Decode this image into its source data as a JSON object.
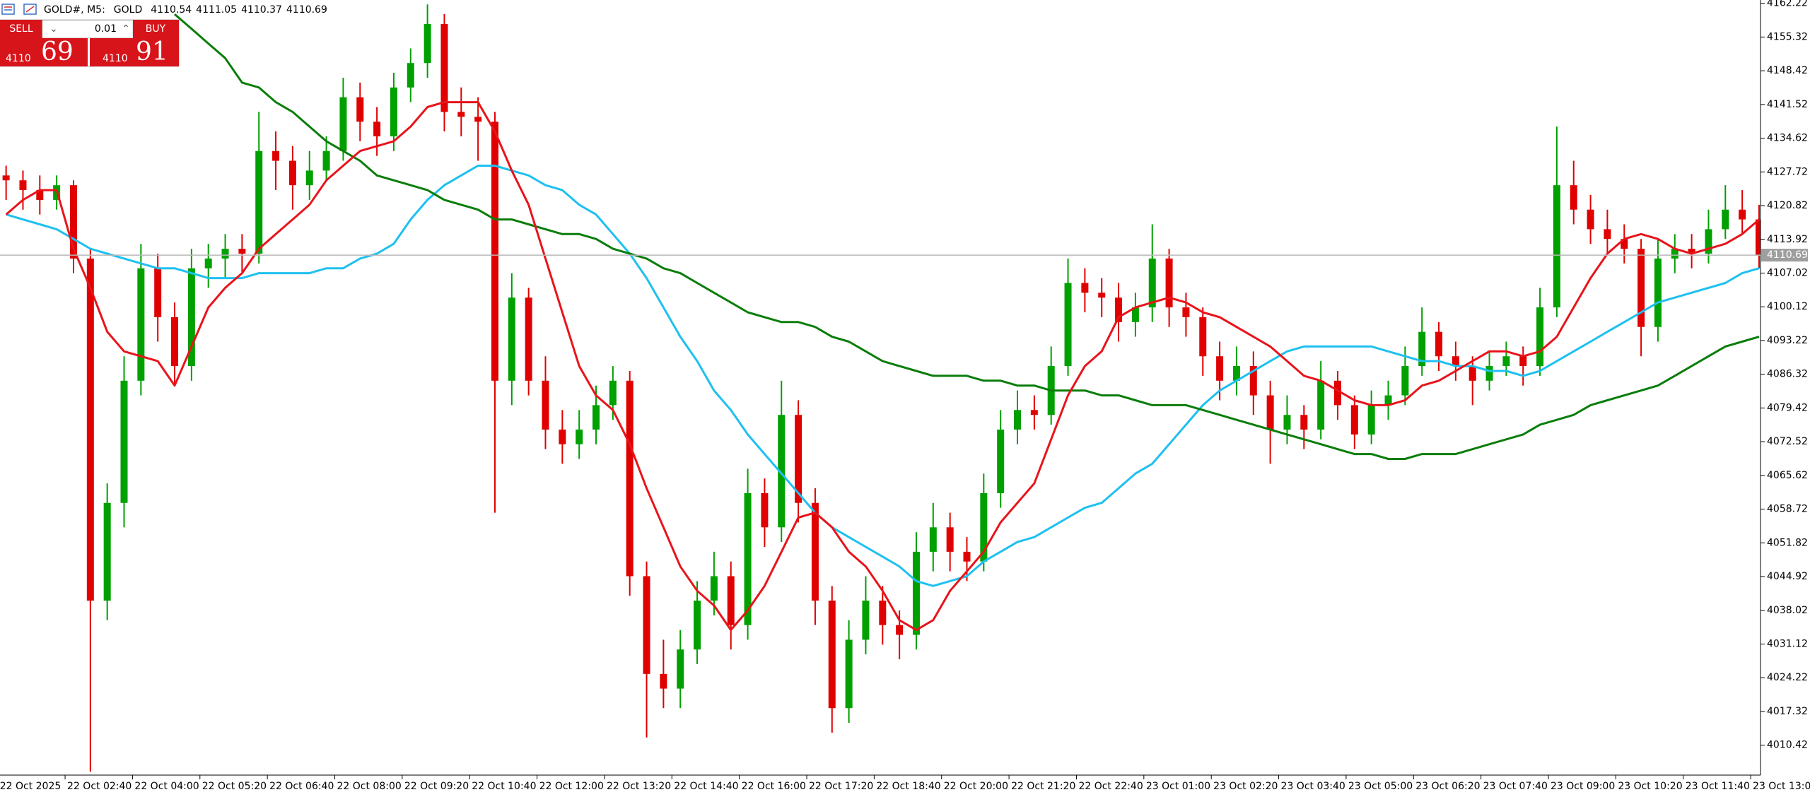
{
  "header": {
    "symbol": "GOLD#, M5:",
    "name": "GOLD",
    "ohlc": [
      4110.54,
      4111.05,
      4110.37,
      4110.69
    ]
  },
  "trade_panel": {
    "sell": "SELL",
    "buy": "BUY",
    "volume": "0.01",
    "sell_price": {
      "small": "4110",
      "big": "69"
    },
    "buy_price": {
      "small": "4110",
      "big": "91"
    }
  },
  "chart_data": {
    "type": "candlestick",
    "ylim": [
      4004.3,
      4162.9
    ],
    "yticks": [
      4010.42,
      4017.32,
      4024.22,
      4031.12,
      4038.02,
      4044.92,
      4051.82,
      4058.72,
      4065.62,
      4072.52,
      4079.42,
      4086.32,
      4093.22,
      4100.12,
      4107.02,
      4113.92,
      4120.82,
      4127.72,
      4134.62,
      4141.52,
      4148.42,
      4155.32,
      4162.22
    ],
    "current_price": 4110.69,
    "grid": false,
    "up_color": "#00a000",
    "down_color": "#e00000",
    "xticks": [
      {
        "value": 0,
        "label": "22 Oct 2025"
      },
      {
        "value": 4,
        "label": "22 Oct 02:40"
      },
      {
        "value": 8,
        "label": "22 Oct 04:00"
      },
      {
        "value": 12,
        "label": "22 Oct 05:20"
      },
      {
        "value": 16,
        "label": "22 Oct 06:40"
      },
      {
        "value": 20,
        "label": "22 Oct 08:00"
      },
      {
        "value": 24,
        "label": "22 Oct 09:20"
      },
      {
        "value": 28,
        "label": "22 Oct 10:40"
      },
      {
        "value": 32,
        "label": "22 Oct 12:00"
      },
      {
        "value": 36,
        "label": "22 Oct 13:20"
      },
      {
        "value": 40,
        "label": "22 Oct 14:40"
      },
      {
        "value": 44,
        "label": "22 Oct 16:00"
      },
      {
        "value": 48,
        "label": "22 Oct 17:20"
      },
      {
        "value": 52,
        "label": "22 Oct 18:40"
      },
      {
        "value": 56,
        "label": "22 Oct 20:00"
      },
      {
        "value": 60,
        "label": "22 Oct 21:20"
      },
      {
        "value": 64,
        "label": "22 Oct 22:40"
      },
      {
        "value": 68,
        "label": "23 Oct 01:00"
      },
      {
        "value": 72,
        "label": "23 Oct 02:20"
      },
      {
        "value": 76,
        "label": "23 Oct 03:40"
      },
      {
        "value": 80,
        "label": "23 Oct 05:00"
      },
      {
        "value": 84,
        "label": "23 Oct 06:20"
      },
      {
        "value": 88,
        "label": "23 Oct 07:40"
      },
      {
        "value": 92,
        "label": "23 Oct 09:00"
      },
      {
        "value": 96,
        "label": "23 Oct 10:20"
      },
      {
        "value": 100,
        "label": "23 Oct 11:40"
      },
      {
        "value": 104,
        "label": "23 Oct 13:00"
      }
    ],
    "candles": [
      [
        4127,
        4129,
        4122,
        4126
      ],
      [
        4126,
        4128,
        4120,
        4124
      ],
      [
        4124,
        4127,
        4119,
        4122
      ],
      [
        4122,
        4127,
        4120,
        4125
      ],
      [
        4125,
        4126,
        4107,
        4110
      ],
      [
        4110,
        4112,
        4005,
        4040
      ],
      [
        4040,
        4064,
        4036,
        4060
      ],
      [
        4060,
        4090,
        4055,
        4085
      ],
      [
        4085,
        4113,
        4082,
        4108
      ],
      [
        4108,
        4111,
        4093,
        4098
      ],
      [
        4098,
        4101,
        4084,
        4088
      ],
      [
        4088,
        4112,
        4085,
        4108
      ],
      [
        4108,
        4113,
        4104,
        4110
      ],
      [
        4110,
        4115,
        4106,
        4112
      ],
      [
        4112,
        4115,
        4107,
        4111
      ],
      [
        4111,
        4140,
        4109,
        4132
      ],
      [
        4132,
        4136,
        4124,
        4130
      ],
      [
        4130,
        4133,
        4120,
        4125
      ],
      [
        4125,
        4132,
        4122,
        4128
      ],
      [
        4128,
        4135,
        4126,
        4132
      ],
      [
        4132,
        4147,
        4130,
        4143
      ],
      [
        4143,
        4146,
        4134,
        4138
      ],
      [
        4138,
        4141,
        4131,
        4135
      ],
      [
        4135,
        4148,
        4132,
        4145
      ],
      [
        4145,
        4153,
        4142,
        4150
      ],
      [
        4150,
        4162,
        4147,
        4158
      ],
      [
        4158,
        4160,
        4136,
        4140
      ],
      [
        4140,
        4145,
        4135,
        4139
      ],
      [
        4139,
        4143,
        4130,
        4138
      ],
      [
        4138,
        4140,
        4058,
        4085
      ],
      [
        4085,
        4107,
        4080,
        4102
      ],
      [
        4102,
        4104,
        4082,
        4085
      ],
      [
        4085,
        4090,
        4071,
        4075
      ],
      [
        4075,
        4079,
        4068,
        4072
      ],
      [
        4072,
        4079,
        4069,
        4075
      ],
      [
        4075,
        4084,
        4072,
        4080
      ],
      [
        4080,
        4088,
        4077,
        4085
      ],
      [
        4085,
        4087,
        4041,
        4045
      ],
      [
        4045,
        4048,
        4012,
        4025
      ],
      [
        4025,
        4032,
        4018,
        4022
      ],
      [
        4022,
        4034,
        4018,
        4030
      ],
      [
        4030,
        4044,
        4027,
        4040
      ],
      [
        4040,
        4050,
        4037,
        4045
      ],
      [
        4045,
        4048,
        4030,
        4035
      ],
      [
        4035,
        4067,
        4032,
        4062
      ],
      [
        4062,
        4065,
        4051,
        4055
      ],
      [
        4055,
        4085,
        4052,
        4078
      ],
      [
        4078,
        4081,
        4056,
        4060
      ],
      [
        4060,
        4063,
        4035,
        4040
      ],
      [
        4040,
        4043,
        4013,
        4018
      ],
      [
        4018,
        4036,
        4015,
        4032
      ],
      [
        4032,
        4045,
        4029,
        4040
      ],
      [
        4040,
        4043,
        4031,
        4035
      ],
      [
        4035,
        4038,
        4028,
        4033
      ],
      [
        4033,
        4054,
        4030,
        4050
      ],
      [
        4050,
        4060,
        4046,
        4055
      ],
      [
        4055,
        4058,
        4046,
        4050
      ],
      [
        4050,
        4053,
        4044,
        4048
      ],
      [
        4048,
        4066,
        4046,
        4062
      ],
      [
        4062,
        4079,
        4059,
        4075
      ],
      [
        4075,
        4083,
        4072,
        4079
      ],
      [
        4079,
        4082,
        4075,
        4078
      ],
      [
        4078,
        4092,
        4076,
        4088
      ],
      [
        4088,
        4110,
        4086,
        4105
      ],
      [
        4105,
        4108,
        4099,
        4103
      ],
      [
        4103,
        4106,
        4098,
        4102
      ],
      [
        4102,
        4105,
        4093,
        4097
      ],
      [
        4097,
        4103,
        4094,
        4100
      ],
      [
        4100,
        4117,
        4097,
        4110
      ],
      [
        4110,
        4112,
        4096,
        4100
      ],
      [
        4100,
        4103,
        4094,
        4098
      ],
      [
        4098,
        4100,
        4086,
        4090
      ],
      [
        4090,
        4093,
        4081,
        4085
      ],
      [
        4085,
        4092,
        4082,
        4088
      ],
      [
        4088,
        4091,
        4078,
        4082
      ],
      [
        4082,
        4085,
        4068,
        4075
      ],
      [
        4075,
        4082,
        4072,
        4078
      ],
      [
        4078,
        4080,
        4071,
        4075
      ],
      [
        4075,
        4089,
        4073,
        4085
      ],
      [
        4085,
        4087,
        4077,
        4080
      ],
      [
        4080,
        4082,
        4071,
        4074
      ],
      [
        4074,
        4083,
        4072,
        4080
      ],
      [
        4080,
        4085,
        4077,
        4082
      ],
      [
        4082,
        4092,
        4080,
        4088
      ],
      [
        4088,
        4100,
        4086,
        4095
      ],
      [
        4095,
        4097,
        4087,
        4090
      ],
      [
        4090,
        4093,
        4085,
        4088
      ],
      [
        4088,
        4090,
        4080,
        4085
      ],
      [
        4085,
        4091,
        4083,
        4088
      ],
      [
        4088,
        4093,
        4086,
        4090
      ],
      [
        4090,
        4092,
        4084,
        4088
      ],
      [
        4088,
        4104,
        4086,
        4100
      ],
      [
        4100,
        4137,
        4098,
        4125
      ],
      [
        4125,
        4130,
        4117,
        4120
      ],
      [
        4120,
        4123,
        4113,
        4116
      ],
      [
        4116,
        4120,
        4111,
        4114
      ],
      [
        4114,
        4117,
        4109,
        4112
      ],
      [
        4112,
        4114,
        4090,
        4096
      ],
      [
        4096,
        4114,
        4093,
        4110
      ],
      [
        4110,
        4115,
        4107,
        4112
      ],
      [
        4112,
        4115,
        4108,
        4111
      ],
      [
        4111,
        4120,
        4109,
        4116
      ],
      [
        4116,
        4125,
        4114,
        4120
      ],
      [
        4120,
        4124,
        4115,
        4118
      ],
      [
        4118,
        4121,
        4108,
        4110.69
      ]
    ],
    "series": [
      {
        "color": "#1ec0f0",
        "values": [
          4119,
          4118,
          4117,
          4116,
          4114,
          4112,
          4111,
          4110,
          4109,
          4108,
          4108,
          4107,
          4106,
          4106,
          4106,
          4107,
          4107,
          4107,
          4107,
          4108,
          4108,
          4110,
          4111,
          4113,
          4118,
          4122,
          4125,
          4127,
          4129,
          4129,
          4128,
          4127,
          4125,
          4124,
          4121,
          4119,
          4115,
          4111,
          4106,
          4100,
          4094,
          4089,
          4083,
          4079,
          4074,
          4070,
          4066,
          4062,
          4058,
          4055,
          4053,
          4051,
          4049,
          4047,
          4044,
          4043,
          4044,
          4045,
          4048,
          4050,
          4052,
          4053,
          4055,
          4057,
          4059,
          4060,
          4063,
          4066,
          4068,
          4072,
          4076,
          4080,
          4083,
          4085,
          4087,
          4089,
          4091,
          4092,
          4092,
          4092,
          4092,
          4092,
          4091,
          4090,
          4089,
          4089,
          4088,
          4088,
          4087,
          4087,
          4086,
          4087,
          4089,
          4091,
          4093,
          4095,
          4097,
          4099,
          4101,
          4102,
          4103,
          4104,
          4105,
          4107,
          4108
        ]
      },
      {
        "color": "#0a7d0a",
        "values": [
          null,
          null,
          null,
          null,
          null,
          null,
          null,
          null,
          null,
          null,
          4160,
          4157,
          4154,
          4151,
          4146,
          4145,
          4142,
          4140,
          4137,
          4134,
          4132,
          4130,
          4127,
          4126,
          4125,
          4124,
          4122,
          4121,
          4120,
          4118,
          4118,
          4117,
          4116,
          4115,
          4115,
          4114,
          4112,
          4111,
          4110,
          4108,
          4107,
          4105,
          4103,
          4101,
          4099,
          4098,
          4097,
          4097,
          4096,
          4094,
          4093,
          4091,
          4089,
          4088,
          4087,
          4086,
          4086,
          4086,
          4085,
          4085,
          4084,
          4084,
          4083,
          4083,
          4083,
          4082,
          4082,
          4081,
          4080,
          4080,
          4080,
          4079,
          4078,
          4077,
          4076,
          4075,
          4074,
          4073,
          4072,
          4071,
          4070,
          4070,
          4069,
          4069,
          4070,
          4070,
          4070,
          4071,
          4072,
          4073,
          4074,
          4076,
          4077,
          4078,
          4080,
          4081,
          4082,
          4083,
          4084,
          4086,
          4088,
          4090,
          4092,
          4093,
          4094
        ]
      },
      {
        "color": "#e8141b",
        "values": [
          4119,
          4122,
          4124,
          4124,
          4112,
          4104,
          4095,
          4091,
          4090,
          4089,
          4084,
          4092,
          4100,
          4104,
          4107,
          4112,
          4115,
          4118,
          4121,
          4126,
          4129,
          4132,
          4133,
          4134,
          4137,
          4141,
          4142,
          4142,
          4142,
          4136,
          4128,
          4121,
          4110,
          4099,
          4088,
          4082,
          4079,
          4072,
          4063,
          4055,
          4047,
          4042,
          4039,
          4034,
          4038,
          4043,
          4050,
          4057,
          4058,
          4055,
          4050,
          4047,
          4042,
          4036,
          4034,
          4036,
          4042,
          4046,
          4050,
          4056,
          4060,
          4064,
          4073,
          4082,
          4088,
          4091,
          4098,
          4100,
          4101,
          4102,
          4101,
          4099,
          4098,
          4096,
          4094,
          4092,
          4089,
          4086,
          4085,
          4083,
          4081,
          4080,
          4080,
          4081,
          4084,
          4085,
          4087,
          4089,
          4091,
          4091,
          4090,
          4091,
          4094,
          4100,
          4106,
          4111,
          4114,
          4115,
          4114,
          4112,
          4111,
          4112,
          4113,
          4115,
          4118
        ]
      }
    ]
  }
}
